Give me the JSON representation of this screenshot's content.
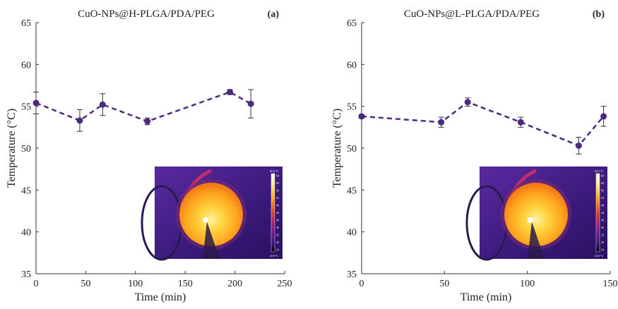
{
  "chart_data": [
    {
      "type": "line",
      "panel_label": "(a)",
      "title": "CuO-NPs@H-PLGA/PDA/PEG",
      "xlabel": "Time (min)",
      "ylabel": "Temperature (°C)",
      "xlim": [
        0,
        250
      ],
      "ylim": [
        35,
        65
      ],
      "xticks": [
        0,
        50,
        100,
        150,
        200,
        250
      ],
      "yticks": [
        35,
        40,
        45,
        50,
        55,
        60,
        65
      ],
      "series": [
        {
          "x": [
            0,
            44,
            67,
            112,
            195,
            216
          ],
          "y": [
            55.4,
            53.3,
            55.2,
            53.2,
            56.7,
            55.3
          ],
          "error": [
            1.3,
            1.3,
            1.3,
            0.4,
            0.3,
            1.7
          ],
          "color": "#4b2a82",
          "line_style": "dashed"
        }
      ],
      "inset": "thermal-image"
    },
    {
      "type": "line",
      "panel_label": "(b)",
      "title": "CuO-NPs@L-PLGA/PDA/PEG",
      "xlabel": "Time (min)",
      "ylabel": "Temperature (°C)",
      "xlim": [
        0,
        150
      ],
      "ylim": [
        35,
        65
      ],
      "xticks": [
        0,
        50,
        100,
        150
      ],
      "yticks": [
        35,
        40,
        45,
        50,
        55,
        60,
        65
      ],
      "series": [
        {
          "x": [
            0,
            48,
            64,
            96,
            131,
            146
          ],
          "y": [
            53.8,
            53.1,
            55.5,
            53.1,
            50.3,
            53.8
          ],
          "error": [
            0.2,
            0.6,
            0.5,
            0.6,
            1.0,
            1.2
          ],
          "color": "#4b2a82",
          "line_style": "dashed"
        }
      ],
      "inset": "thermal-image"
    }
  ],
  "inset_colorbar": {
    "top_label": "65.0 °C",
    "bottom_label": "22.0 °C",
    "tick_labels": [
      "64",
      "60",
      "56",
      "52",
      "48",
      "44",
      "40",
      "36",
      "32",
      "28",
      "24"
    ]
  }
}
